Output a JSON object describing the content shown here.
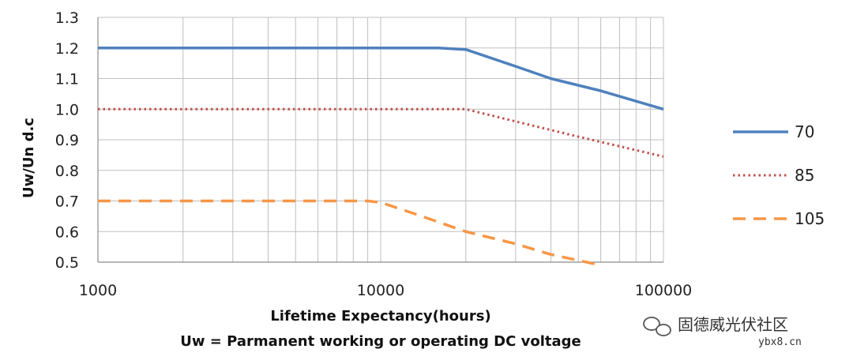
{
  "chart_data": {
    "type": "line",
    "xscale": "log",
    "xlim": [
      1000,
      100000
    ],
    "ylim": [
      0.5,
      1.3
    ],
    "xticks": [
      "1000",
      "10000",
      "100000"
    ],
    "yticks": [
      "0.5",
      "0.6",
      "0.7",
      "0.8",
      "0.9",
      "1.0",
      "1.1",
      "1.2",
      "1.3"
    ],
    "ylabel": "Uw/Un   d.c",
    "xlabel": "Lifetime Expectancy(hours)",
    "subtitle": "Uw = Parmanent working or operating DC voltage",
    "grid": true,
    "legend_position": "right",
    "series": [
      {
        "name": "70",
        "color": "#4f81bd",
        "style": "solid",
        "x": [
          1000,
          16000,
          20000,
          30000,
          40000,
          60000,
          100000
        ],
        "y": [
          1.2,
          1.2,
          1.195,
          1.14,
          1.1,
          1.06,
          1.0
        ]
      },
      {
        "name": "85",
        "color": "#c0504d",
        "style": "dotted",
        "x": [
          1000,
          20000,
          30000,
          50000,
          100000
        ],
        "y": [
          1.0,
          1.0,
          0.96,
          0.91,
          0.845
        ]
      },
      {
        "name": "105",
        "color": "#f79646",
        "style": "dashed",
        "x": [
          1000,
          9000,
          10000,
          13000,
          20000,
          30000,
          40000,
          60000
        ],
        "y": [
          0.7,
          0.7,
          0.695,
          0.66,
          0.6,
          0.56,
          0.525,
          0.49
        ]
      }
    ]
  },
  "watermark": {
    "text": "固德威光伏社区",
    "url": "ybx8.cn",
    "icon": "wechat-icon"
  }
}
